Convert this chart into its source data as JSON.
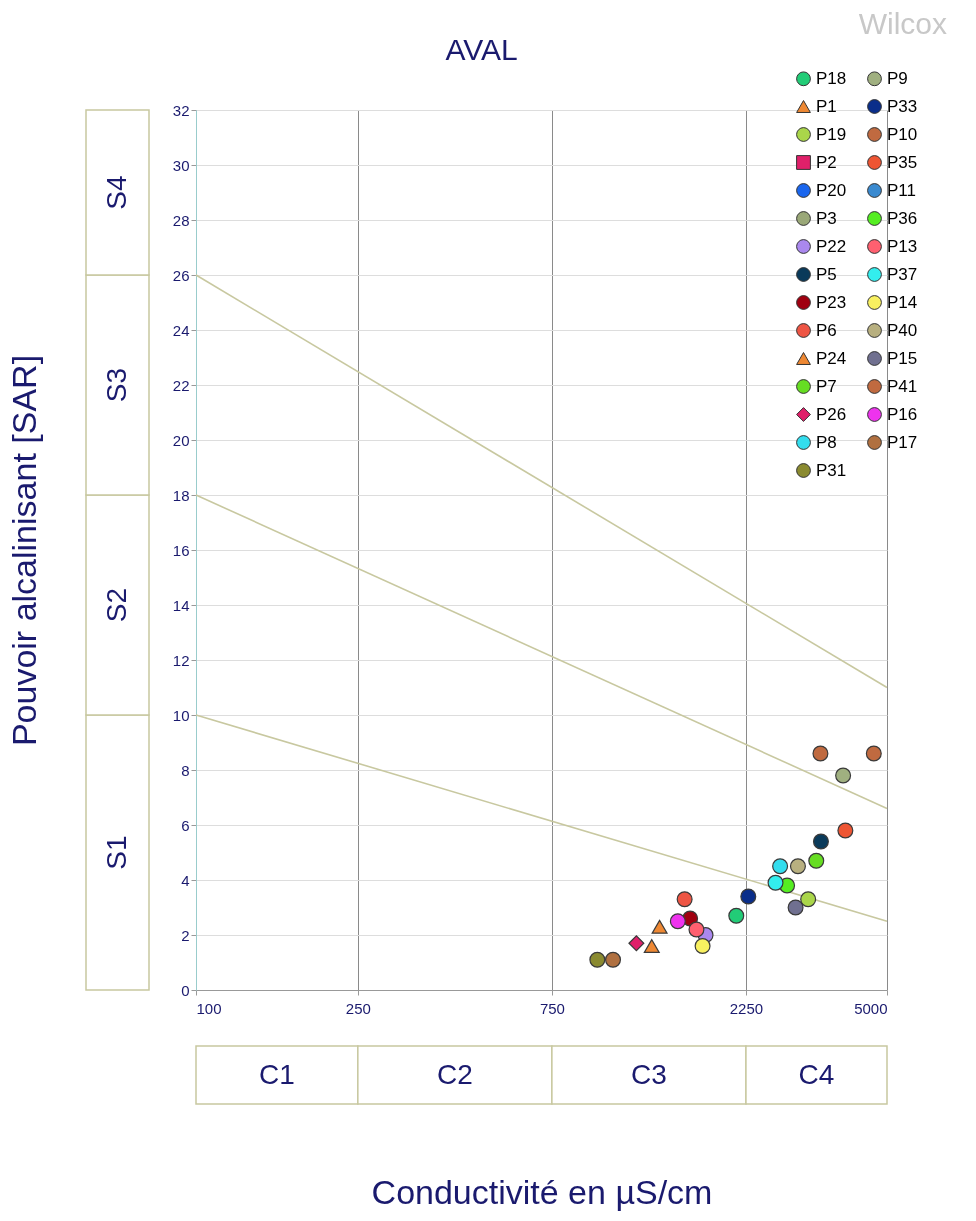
{
  "chart_data": {
    "type": "scatter",
    "title": "AVAL",
    "xlabel": "Conductivité en µS/cm",
    "ylabel": "Pouvoir alcalinisant [SAR]",
    "annotations": [
      "S1",
      "S2",
      "S3",
      "S4",
      "C1",
      "C2",
      "C3",
      "C4",
      "Wilcox"
    ],
    "log": "x",
    "xlim": [
      100,
      5000
    ],
    "xticks": [
      100,
      250,
      750,
      2250,
      5000
    ],
    "ylim": [
      0,
      32
    ],
    "yticks": [
      0,
      2,
      4,
      6,
      8,
      10,
      12,
      14,
      16,
      18,
      20,
      22,
      24,
      26,
      28,
      30,
      32
    ],
    "grid": true,
    "legend": "top right",
    "series": [
      {
        "type": "line",
        "color": "#c8c8a0",
        "x": [
          100,
          5000
        ],
        "values": [
          26,
          11
        ]
      },
      {
        "type": "line",
        "color": "#c8c8a0",
        "x": [
          100,
          5000
        ],
        "values": [
          18,
          6.6
        ]
      },
      {
        "type": "line",
        "color": "#c8c8a0",
        "x": [
          100,
          5000
        ],
        "values": [
          10,
          2.5
        ]
      },
      {
        "name": "P18",
        "color": "#22cc77",
        "marker": "circle",
        "x": [
          2130
        ],
        "values": [
          2.7
        ]
      },
      {
        "name": "P1",
        "color": "#ee8833",
        "marker": "triangle",
        "x": [
          1380
        ],
        "values": [
          2.3
        ]
      },
      {
        "name": "P19",
        "color": "#aad64a",
        "marker": "circle",
        "x": [
          3200
        ],
        "values": [
          3.3
        ]
      },
      {
        "name": "P2",
        "color": "#e0206a",
        "marker": "square",
        "x": [
          null
        ],
        "values": [
          null
        ]
      },
      {
        "name": "P20",
        "color": "#1a66ee",
        "marker": "circle",
        "x": [
          null
        ],
        "values": [
          null
        ]
      },
      {
        "name": "P3",
        "color": "#9aa878",
        "marker": "circle",
        "x": [
          null
        ],
        "values": [
          null
        ]
      },
      {
        "name": "P22",
        "color": "#aa88ee",
        "marker": "circle",
        "x": [
          1790
        ],
        "values": [
          2.0
        ]
      },
      {
        "name": "P5",
        "color": "#0a3a5a",
        "marker": "circle",
        "x": [
          3440
        ],
        "values": [
          5.4
        ]
      },
      {
        "name": "P23",
        "color": "#a00010",
        "marker": "circle",
        "x": [
          1640
        ],
        "values": [
          2.6
        ]
      },
      {
        "name": "P6",
        "color": "#ee5544",
        "marker": "circle",
        "x": [
          1590
        ],
        "values": [
          3.3
        ]
      },
      {
        "name": "P24",
        "color": "#ee8833",
        "marker": "triangle",
        "x": [
          1320
        ],
        "values": [
          1.6
        ]
      },
      {
        "name": "P7",
        "color": "#66dd22",
        "marker": "circle",
        "x": [
          3350
        ],
        "values": [
          4.7
        ]
      },
      {
        "name": "P26",
        "color": "#e0206a",
        "marker": "diamond",
        "x": [
          1210
        ],
        "values": [
          1.7
        ]
      },
      {
        "name": "P8",
        "color": "#33ddee",
        "marker": "circle",
        "x": [
          2730
        ],
        "values": [
          4.5
        ]
      },
      {
        "name": "P31",
        "color": "#8a8a30",
        "marker": "circle",
        "x": [
          970
        ],
        "values": [
          1.1
        ]
      },
      {
        "name": "P9",
        "color": "#a0b080",
        "marker": "circle",
        "x": [
          3900
        ],
        "values": [
          7.8
        ]
      },
      {
        "name": "P33",
        "color": "#0a2e8a",
        "marker": "circle",
        "x": [
          2280
        ],
        "values": [
          3.4
        ]
      },
      {
        "name": "P10",
        "color": "#c06a40",
        "marker": "circle",
        "x": [
          4640
        ],
        "values": [
          8.6
        ]
      },
      {
        "name": "P35",
        "color": "#ee5533",
        "marker": "circle",
        "x": [
          3950
        ],
        "values": [
          5.8
        ]
      },
      {
        "name": "P11",
        "color": "#3a8ad0",
        "marker": "circle",
        "x": [
          null
        ],
        "values": [
          null
        ]
      },
      {
        "name": "P36",
        "color": "#55ee22",
        "marker": "circle",
        "x": [
          2840
        ],
        "values": [
          3.8
        ]
      },
      {
        "name": "P13",
        "color": "#ff6070",
        "marker": "circle",
        "x": [
          1700
        ],
        "values": [
          2.2
        ]
      },
      {
        "name": "P37",
        "color": "#33eeee",
        "marker": "circle",
        "x": [
          2660
        ],
        "values": [
          3.9
        ]
      },
      {
        "name": "P14",
        "color": "#f8f060",
        "marker": "circle",
        "x": [
          1760
        ],
        "values": [
          1.6
        ]
      },
      {
        "name": "P40",
        "color": "#b8b080",
        "marker": "circle",
        "x": [
          3020
        ],
        "values": [
          4.5
        ]
      },
      {
        "name": "P15",
        "color": "#707090",
        "marker": "circle",
        "x": [
          2980
        ],
        "values": [
          3.0
        ]
      },
      {
        "name": "P41",
        "color": "#c06a40",
        "marker": "circle",
        "x": [
          3430
        ],
        "values": [
          8.6
        ]
      },
      {
        "name": "P16",
        "color": "#ee33ee",
        "marker": "circle",
        "x": [
          1530
        ],
        "values": [
          2.5
        ]
      },
      {
        "name": "P17",
        "color": "#b07040",
        "marker": "circle",
        "x": [
          1060
        ],
        "values": [
          1.1
        ]
      }
    ]
  }
}
